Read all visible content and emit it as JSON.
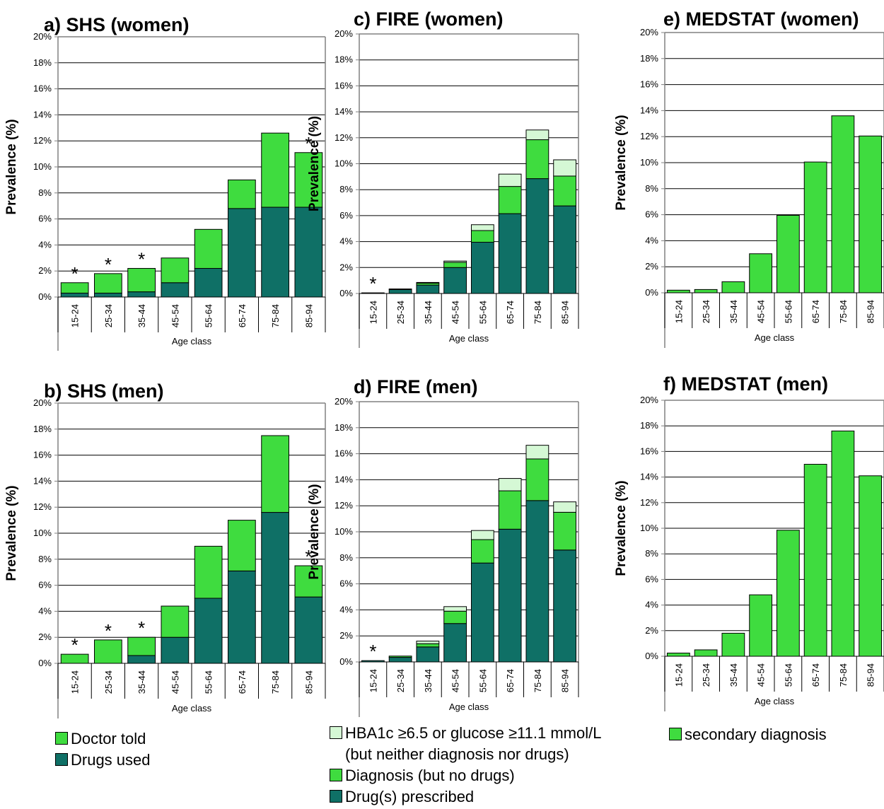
{
  "colors": {
    "dark": "#0f7066",
    "mid": "#3fdc3f",
    "light": "#d5f8d5",
    "axis": "#808080",
    "grid": "#000000"
  },
  "legends": {
    "shs": [
      {
        "label": "Doctor told",
        "color_key": "mid"
      },
      {
        "label": "Drugs used",
        "color_key": "dark"
      }
    ],
    "fire": [
      {
        "label": "HBA1c ≥6.5 or glucose ≥11.1 mmol/L\n(but neither diagnosis nor drugs)",
        "color_key": "light"
      },
      {
        "label": "Diagnosis (but no drugs)",
        "color_key": "mid"
      },
      {
        "label": "Drug(s) prescribed",
        "color_key": "dark"
      }
    ],
    "medstat": [
      {
        "label": "secondary diagnosis",
        "color_key": "mid"
      }
    ]
  },
  "chart_data": [
    {
      "id": "a",
      "type": "bar",
      "stacked": true,
      "title": "a) SHS (women)",
      "xlabel": "Age class",
      "ylabel": "Prevalence (%)",
      "ylim": [
        0,
        20
      ],
      "yticks": [
        "0%",
        "2%",
        "4%",
        "6%",
        "8%",
        "10%",
        "12%",
        "14%",
        "16%",
        "18%",
        "20%"
      ],
      "grid": true,
      "categories": [
        "15-24",
        "25-34",
        "35-44",
        "45-54",
        "55-64",
        "65-74",
        "75-84",
        "85-94"
      ],
      "series": [
        {
          "name": "Drugs used",
          "color_key": "dark",
          "values": [
            0.3,
            0.3,
            0.4,
            1.1,
            2.2,
            6.8,
            6.9,
            6.9
          ]
        },
        {
          "name": "Doctor told",
          "color_key": "mid",
          "values": [
            0.8,
            1.5,
            1.8,
            1.9,
            3.0,
            2.2,
            5.7,
            4.2
          ]
        }
      ],
      "annotations": [
        "*",
        "*",
        "*",
        "",
        "",
        "",
        "",
        "*"
      ]
    },
    {
      "id": "b",
      "type": "bar",
      "stacked": true,
      "title": "b) SHS (men)",
      "xlabel": "Age class",
      "ylabel": "Prevalence (%)",
      "ylim": [
        0,
        20
      ],
      "yticks": [
        "0%",
        "2%",
        "4%",
        "6%",
        "8%",
        "10%",
        "12%",
        "14%",
        "16%",
        "18%",
        "20%"
      ],
      "grid": true,
      "categories": [
        "15-24",
        "25-34",
        "35-44",
        "45-54",
        "55-64",
        "65-74",
        "75-84",
        "85-94"
      ],
      "series": [
        {
          "name": "Drugs used",
          "color_key": "dark",
          "values": [
            0.0,
            0.0,
            0.6,
            2.0,
            5.0,
            7.1,
            11.6,
            5.1
          ]
        },
        {
          "name": "Doctor told",
          "color_key": "mid",
          "values": [
            0.7,
            1.8,
            1.4,
            2.4,
            4.0,
            3.9,
            5.9,
            2.4
          ]
        }
      ],
      "annotations": [
        "*",
        "*",
        "*",
        "",
        "",
        "",
        "",
        "*"
      ]
    },
    {
      "id": "c",
      "type": "bar",
      "stacked": true,
      "title": "c) FIRE (women)",
      "xlabel": "Age class",
      "ylabel": "Prevalence (%)",
      "ylim": [
        0,
        20
      ],
      "yticks": [
        "0%",
        "2%",
        "4%",
        "6%",
        "8%",
        "10%",
        "12%",
        "14%",
        "16%",
        "18%",
        "20%"
      ],
      "grid": true,
      "categories": [
        "15-24",
        "25-34",
        "35-44",
        "45-54",
        "55-64",
        "65-74",
        "75-84",
        "85-94"
      ],
      "series": [
        {
          "name": "Drug(s) prescribed",
          "color_key": "dark",
          "values": [
            0.05,
            0.3,
            0.65,
            2.0,
            3.95,
            6.15,
            8.85,
            6.75
          ]
        },
        {
          "name": "Diagnosis (but no drugs)",
          "color_key": "mid",
          "values": [
            0.0,
            0.05,
            0.15,
            0.4,
            0.9,
            2.1,
            3.0,
            2.3
          ]
        },
        {
          "name": "HBA1c ≥6.5 or glucose ≥11.1 mmol/L (but neither diagnosis nor drugs)",
          "color_key": "light",
          "values": [
            0.0,
            0.0,
            0.05,
            0.1,
            0.45,
            0.95,
            0.75,
            1.25
          ]
        }
      ],
      "annotations": [
        "*",
        "",
        "",
        "",
        "",
        "",
        "",
        ""
      ]
    },
    {
      "id": "d",
      "type": "bar",
      "stacked": true,
      "title": "d) FIRE (men)",
      "xlabel": "Age class",
      "ylabel": "Prevalence (%)",
      "ylim": [
        0,
        20
      ],
      "yticks": [
        "0%",
        "2%",
        "4%",
        "6%",
        "8%",
        "10%",
        "12%",
        "14%",
        "16%",
        "18%",
        "20%"
      ],
      "grid": true,
      "categories": [
        "15-24",
        "25-34",
        "35-44",
        "45-54",
        "55-64",
        "65-74",
        "75-84",
        "85-94"
      ],
      "series": [
        {
          "name": "Drug(s) prescribed",
          "color_key": "dark",
          "values": [
            0.1,
            0.35,
            1.15,
            2.95,
            7.6,
            10.2,
            12.4,
            8.6
          ]
        },
        {
          "name": "Diagnosis (but no drugs)",
          "color_key": "mid",
          "values": [
            0.0,
            0.1,
            0.25,
            0.95,
            1.8,
            2.95,
            3.2,
            2.9
          ]
        },
        {
          "name": "HBA1c ≥6.5 or glucose ≥11.1 mmol/L (but neither diagnosis nor drugs)",
          "color_key": "light",
          "values": [
            0.0,
            0.0,
            0.2,
            0.35,
            0.7,
            0.95,
            1.05,
            0.8
          ]
        }
      ],
      "annotations": [
        "*",
        "",
        "",
        "",
        "",
        "",
        "",
        ""
      ]
    },
    {
      "id": "e",
      "type": "bar",
      "stacked": false,
      "title": "e) MEDSTAT (women)",
      "xlabel": "Age class",
      "ylabel": "Prevalence (%)",
      "ylim": [
        0,
        20
      ],
      "yticks": [
        "0%",
        "2%",
        "4%",
        "6%",
        "8%",
        "10%",
        "12%",
        "14%",
        "16%",
        "18%",
        "20%"
      ],
      "grid": true,
      "categories": [
        "15-24",
        "25-34",
        "35-44",
        "45-54",
        "55-64",
        "65-74",
        "75-84",
        "85-94"
      ],
      "series": [
        {
          "name": "secondary diagnosis",
          "color_key": "mid",
          "values": [
            0.2,
            0.25,
            0.85,
            3.0,
            5.95,
            10.05,
            13.6,
            12.05
          ]
        }
      ],
      "annotations": [
        "",
        "",
        "",
        "",
        "",
        "",
        "",
        ""
      ]
    },
    {
      "id": "f",
      "type": "bar",
      "stacked": false,
      "title": "f) MEDSTAT (men)",
      "xlabel": "Age class",
      "ylabel": "Prevalence (%)",
      "ylim": [
        0,
        20
      ],
      "yticks": [
        "0%",
        "2%",
        "4%",
        "6%",
        "8%",
        "10%",
        "12%",
        "14%",
        "16%",
        "18%",
        "20%"
      ],
      "grid": true,
      "categories": [
        "15-24",
        "25-34",
        "35-44",
        "45-54",
        "55-64",
        "65-74",
        "75-84",
        "85-94"
      ],
      "series": [
        {
          "name": "secondary diagnosis",
          "color_key": "mid",
          "values": [
            0.25,
            0.5,
            1.8,
            4.8,
            9.85,
            15.0,
            17.6,
            14.1
          ]
        }
      ],
      "annotations": [
        "",
        "",
        "",
        "",
        "",
        "",
        "",
        ""
      ]
    }
  ]
}
